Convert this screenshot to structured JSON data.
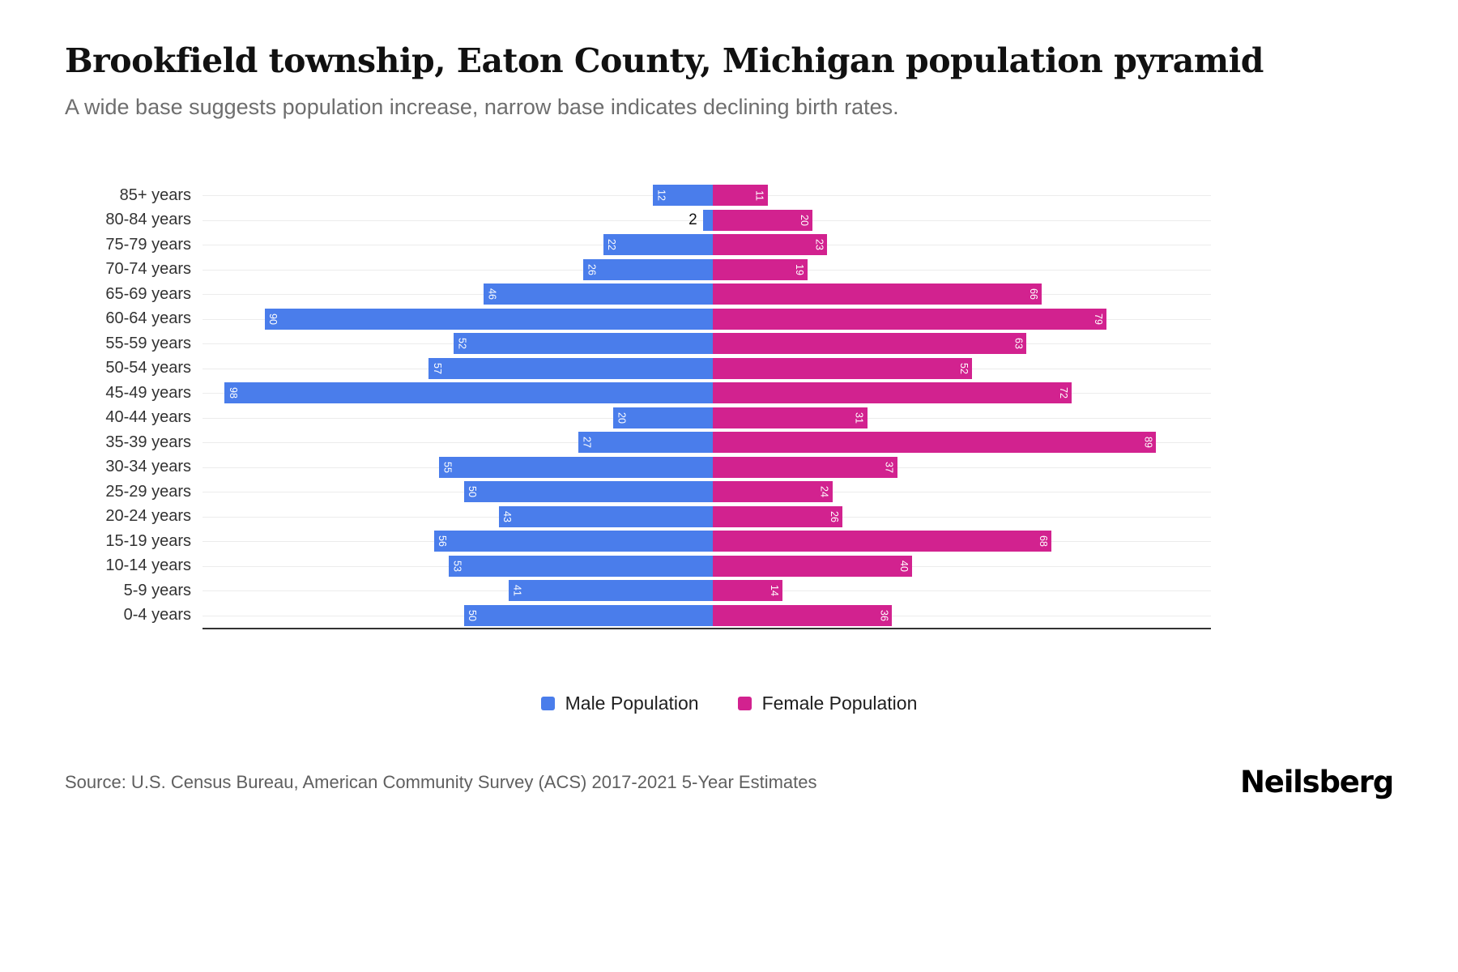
{
  "header": {
    "title": "Brookfield township, Eaton County, Michigan population pyramid",
    "subtitle": "A wide base suggests population increase, narrow base indicates declining birth rates."
  },
  "legend": {
    "male_label": "Male Population",
    "female_label": "Female Population"
  },
  "footer": {
    "source": "Source: U.S. Census Bureau, American Community Survey (ACS) 2017-2021 5-Year Estimates",
    "brand": "Neilsberg"
  },
  "colors": {
    "male": "#4a7deb",
    "female": "#d2228f",
    "gridline": "#ececec",
    "axis": "#333333"
  },
  "chart_data": {
    "type": "bar",
    "subtype": "population_pyramid",
    "orientation": "horizontal",
    "title": "Brookfield township, Eaton County, Michigan population pyramid",
    "subtitle": "A wide base suggests population increase, narrow base indicates declining birth rates.",
    "categories": [
      "85+ years",
      "80-84 years",
      "75-79 years",
      "70-74 years",
      "65-69 years",
      "60-64 years",
      "55-59 years",
      "50-54 years",
      "45-49 years",
      "40-44 years",
      "35-39 years",
      "30-34 years",
      "25-29 years",
      "20-24 years",
      "15-19 years",
      "10-14 years",
      "5-9 years",
      "0-4 years"
    ],
    "series": [
      {
        "name": "Male Population",
        "color": "#4a7deb",
        "direction": "left",
        "values": [
          12,
          2,
          22,
          26,
          46,
          90,
          52,
          57,
          98,
          20,
          27,
          55,
          50,
          43,
          56,
          53,
          41,
          50
        ]
      },
      {
        "name": "Female Population",
        "color": "#d2228f",
        "direction": "right",
        "values": [
          11,
          20,
          23,
          19,
          66,
          79,
          63,
          52,
          72,
          31,
          89,
          37,
          24,
          26,
          68,
          40,
          14,
          36
        ]
      }
    ],
    "value_axis_max_per_side": 100,
    "grid": true,
    "legend_position": "bottom",
    "value_labels": "inside bar ends, rotated 90deg, white; values under 10 shown outside bar in black"
  }
}
